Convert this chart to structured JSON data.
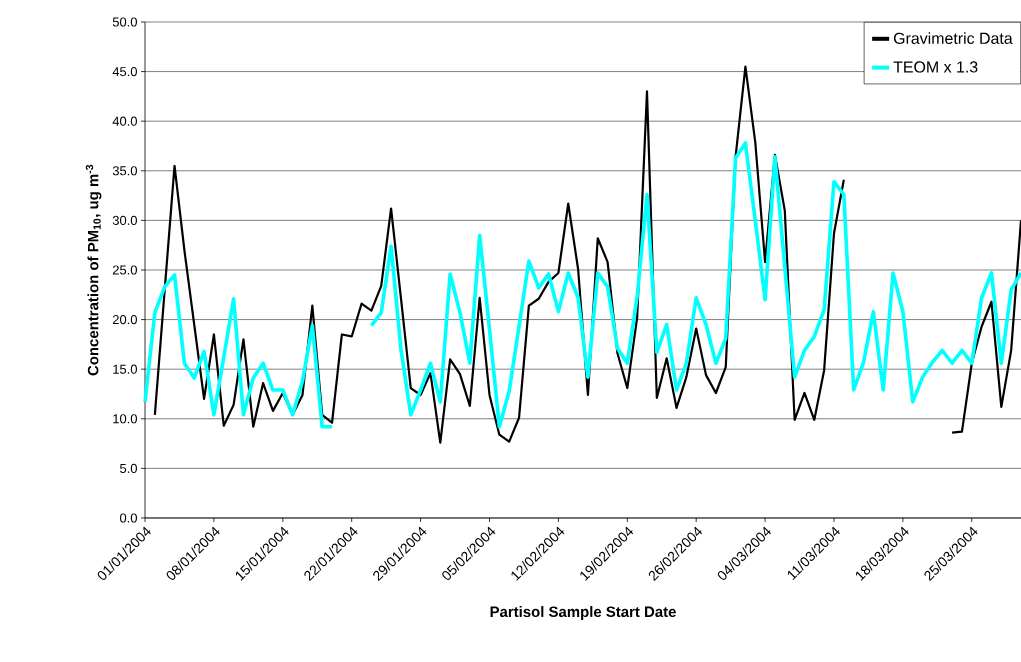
{
  "chart_data": {
    "type": "line",
    "xlabel": "Partisol Sample Start Date",
    "ylabel": "Concentration of PM$_{10}$, ug m$^{-3}$",
    "x": [
      "2004-01-01",
      "2004-01-02",
      "2004-01-03",
      "2004-01-04",
      "2004-01-05",
      "2004-01-06",
      "2004-01-07",
      "2004-01-08",
      "2004-01-09",
      "2004-01-10",
      "2004-01-11",
      "2004-01-12",
      "2004-01-13",
      "2004-01-14",
      "2004-01-15",
      "2004-01-16",
      "2004-01-17",
      "2004-01-18",
      "2004-01-19",
      "2004-01-20",
      "2004-01-21",
      "2004-01-22",
      "2004-01-23",
      "2004-01-24",
      "2004-01-25",
      "2004-01-26",
      "2004-01-27",
      "2004-01-28",
      "2004-01-29",
      "2004-01-30",
      "2004-01-31",
      "2004-02-01",
      "2004-02-02",
      "2004-02-03",
      "2004-02-04",
      "2004-02-05",
      "2004-02-06",
      "2004-02-07",
      "2004-02-08",
      "2004-02-09",
      "2004-02-10",
      "2004-02-11",
      "2004-02-12",
      "2004-02-13",
      "2004-02-14",
      "2004-02-15",
      "2004-02-16",
      "2004-02-17",
      "2004-02-18",
      "2004-02-19",
      "2004-02-20",
      "2004-02-21",
      "2004-02-22",
      "2004-02-23",
      "2004-02-24",
      "2004-02-25",
      "2004-02-26",
      "2004-02-27",
      "2004-02-28",
      "2004-02-29",
      "2004-03-01",
      "2004-03-02",
      "2004-03-03",
      "2004-03-04",
      "2004-03-05",
      "2004-03-06",
      "2004-03-07",
      "2004-03-08",
      "2004-03-09",
      "2004-03-10",
      "2004-03-11",
      "2004-03-12",
      "2004-03-13",
      "2004-03-14",
      "2004-03-15",
      "2004-03-16",
      "2004-03-17",
      "2004-03-18",
      "2004-03-19",
      "2004-03-20",
      "2004-03-21",
      "2004-03-22",
      "2004-03-23",
      "2004-03-24",
      "2004-03-25",
      "2004-03-26",
      "2004-03-27",
      "2004-03-28",
      "2004-03-29",
      "2004-03-30"
    ],
    "series": [
      {
        "name": "Gravimetric Data",
        "color": "#000000",
        "values": [
          null,
          10.4,
          23,
          35.5,
          27,
          19.5,
          12.0,
          18.5,
          9.3,
          11.4,
          18.0,
          9.2,
          13.6,
          10.8,
          12.6,
          10.4,
          12.4,
          21.4,
          10.4,
          9.6,
          18.5,
          18.3,
          21.6,
          20.9,
          23.4,
          31.2,
          22.2,
          13.1,
          12.4,
          14.6,
          7.6,
          16.0,
          14.5,
          11.3,
          22.2,
          12.4,
          8.4,
          7.7,
          10.1,
          21.4,
          22.1,
          23.8,
          24.7,
          31.7,
          25.1,
          12.4,
          28.2,
          25.8,
          16.6,
          13.1,
          20.2,
          43.0,
          12.1,
          16.1,
          11.1,
          14.2,
          19.1,
          14.4,
          12.6,
          15.2,
          36.4,
          45.5,
          37.9,
          25.8,
          36.6,
          31.0,
          9.9,
          12.6,
          9.9,
          14.9,
          28.7,
          34.1,
          null,
          null,
          null,
          null,
          null,
          null,
          null,
          null,
          null,
          null,
          8.6,
          8.7,
          15.6,
          19.3,
          21.8,
          11.2,
          16.9,
          30.0
        ]
      },
      {
        "name": "TEOM x 1.3",
        "color": "#00ffff",
        "values": [
          11.7,
          20.7,
          23.3,
          24.5,
          15.6,
          14.1,
          16.8,
          10.4,
          16.2,
          22.1,
          10.4,
          14.1,
          15.6,
          12.9,
          12.9,
          10.4,
          13.8,
          19.4,
          9.2,
          9.2,
          null,
          null,
          null,
          19.4,
          20.7,
          27.4,
          17.0,
          10.4,
          12.9,
          15.6,
          11.7,
          24.6,
          20.7,
          15.6,
          28.5,
          19.0,
          9.2,
          12.8,
          19.3,
          25.9,
          23.2,
          24.6,
          20.8,
          24.7,
          22.2,
          14.2,
          24.7,
          23.3,
          17.1,
          15.6,
          22.3,
          32.6,
          16.7,
          19.5,
          12.9,
          15.6,
          22.2,
          19.5,
          15.6,
          18.1,
          36.3,
          37.8,
          30.0,
          22.0,
          36.4,
          25.3,
          14.2,
          16.9,
          18.3,
          21.0,
          33.9,
          32.6,
          12.9,
          15.7,
          20.8,
          12.9,
          24.7,
          20.8,
          11.7,
          14.2,
          15.7,
          16.9,
          15.6,
          16.9,
          15.6,
          22.2,
          24.7,
          15.6,
          23.0,
          24.7
        ]
      }
    ],
    "xlim": [
      "2004-01-01",
      "2004-03-30"
    ],
    "xticks": [
      {
        "value": "2004-01-01",
        "label": "01/01/2004"
      },
      {
        "value": "2004-01-08",
        "label": "08/01/2004"
      },
      {
        "value": "2004-01-15",
        "label": "15/01/2004"
      },
      {
        "value": "2004-01-22",
        "label": "22/01/2004"
      },
      {
        "value": "2004-01-29",
        "label": "29/01/2004"
      },
      {
        "value": "2004-02-05",
        "label": "05/02/2004"
      },
      {
        "value": "2004-02-12",
        "label": "12/02/2004"
      },
      {
        "value": "2004-02-19",
        "label": "19/02/2004"
      },
      {
        "value": "2004-02-26",
        "label": "26/02/2004"
      },
      {
        "value": "2004-03-04",
        "label": "04/03/2004"
      },
      {
        "value": "2004-03-11",
        "label": "11/03/2004"
      },
      {
        "value": "2004-03-18",
        "label": "18/03/2004"
      },
      {
        "value": "2004-03-25",
        "label": "25/03/2004"
      }
    ],
    "ylim": [
      0,
      50
    ],
    "yticks": [
      {
        "value": 0,
        "label": "0.0"
      },
      {
        "value": 5,
        "label": "5.0"
      },
      {
        "value": 10,
        "label": "10.0"
      },
      {
        "value": 15,
        "label": "15.0"
      },
      {
        "value": 20,
        "label": "20.0"
      },
      {
        "value": 25,
        "label": "25.0"
      },
      {
        "value": 30,
        "label": "30.0"
      },
      {
        "value": 35,
        "label": "35.0"
      },
      {
        "value": 40,
        "label": "40.0"
      },
      {
        "value": 45,
        "label": "45.0"
      },
      {
        "value": 50,
        "label": "50.0"
      }
    ],
    "grid": "y",
    "legend": "top right",
    "marker": "none",
    "line_style": "solid"
  }
}
